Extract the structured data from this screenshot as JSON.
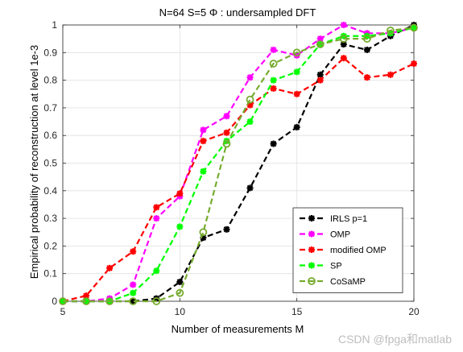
{
  "chart_data": {
    "type": "line",
    "title": "N=64 S=5 Φ : undersampled DFT",
    "xlabel": "Number of measurements M",
    "ylabel": "Empirical probability of reconstruction at level 1e-3",
    "xlim": [
      5,
      20
    ],
    "ylim": [
      0,
      1
    ],
    "x_ticks": [
      5,
      10,
      15,
      20
    ],
    "y_ticks": [
      0,
      0.1,
      0.2,
      0.3,
      0.4,
      0.5,
      0.6,
      0.7,
      0.8,
      0.9,
      1
    ],
    "y_tick_labels": [
      "0",
      "0.1",
      "0.2",
      "0.3",
      "0.4",
      "0.5",
      "0.6",
      "0.7",
      "0.8",
      "0.9",
      "1"
    ],
    "grid": true,
    "legend_position": "bottom-right",
    "x": [
      5,
      6,
      7,
      8,
      9,
      10,
      11,
      12,
      13,
      14,
      15,
      16,
      17,
      18,
      19,
      20
    ],
    "series": [
      {
        "name": "IRLS p=1",
        "color": "#000000",
        "marker": "asterisk",
        "values": [
          0,
          0,
          0,
          0,
          0.01,
          0.07,
          0.23,
          0.26,
          0.41,
          0.57,
          0.63,
          0.82,
          0.93,
          0.91,
          0.96,
          1.0
        ]
      },
      {
        "name": "OMP",
        "color": "#ff00ff",
        "marker": "asterisk",
        "values": [
          0,
          0,
          0.01,
          0.06,
          0.3,
          0.38,
          0.62,
          0.67,
          0.81,
          0.91,
          0.89,
          0.95,
          1.0,
          0.97,
          0.97,
          0.99
        ]
      },
      {
        "name": "modified OMP",
        "color": "#ff0000",
        "marker": "asterisk",
        "values": [
          0,
          0.02,
          0.12,
          0.18,
          0.34,
          0.39,
          0.58,
          0.61,
          0.71,
          0.77,
          0.75,
          0.8,
          0.88,
          0.81,
          0.82,
          0.86
        ]
      },
      {
        "name": "SP",
        "color": "#00ff00",
        "marker": "asterisk",
        "values": [
          0,
          0,
          0,
          0.03,
          0.11,
          0.27,
          0.47,
          0.58,
          0.65,
          0.8,
          0.83,
          0.93,
          0.96,
          0.96,
          0.97,
          0.99
        ]
      },
      {
        "name": "CoSaMP",
        "color": "#77ac30",
        "marker": "circle",
        "values": [
          0,
          0,
          0,
          0,
          0,
          0.03,
          0.25,
          0.57,
          0.73,
          0.86,
          0.9,
          0.93,
          0.95,
          0.95,
          0.98,
          0.99
        ]
      }
    ]
  },
  "watermark": "CSDN @fpga和matlab"
}
